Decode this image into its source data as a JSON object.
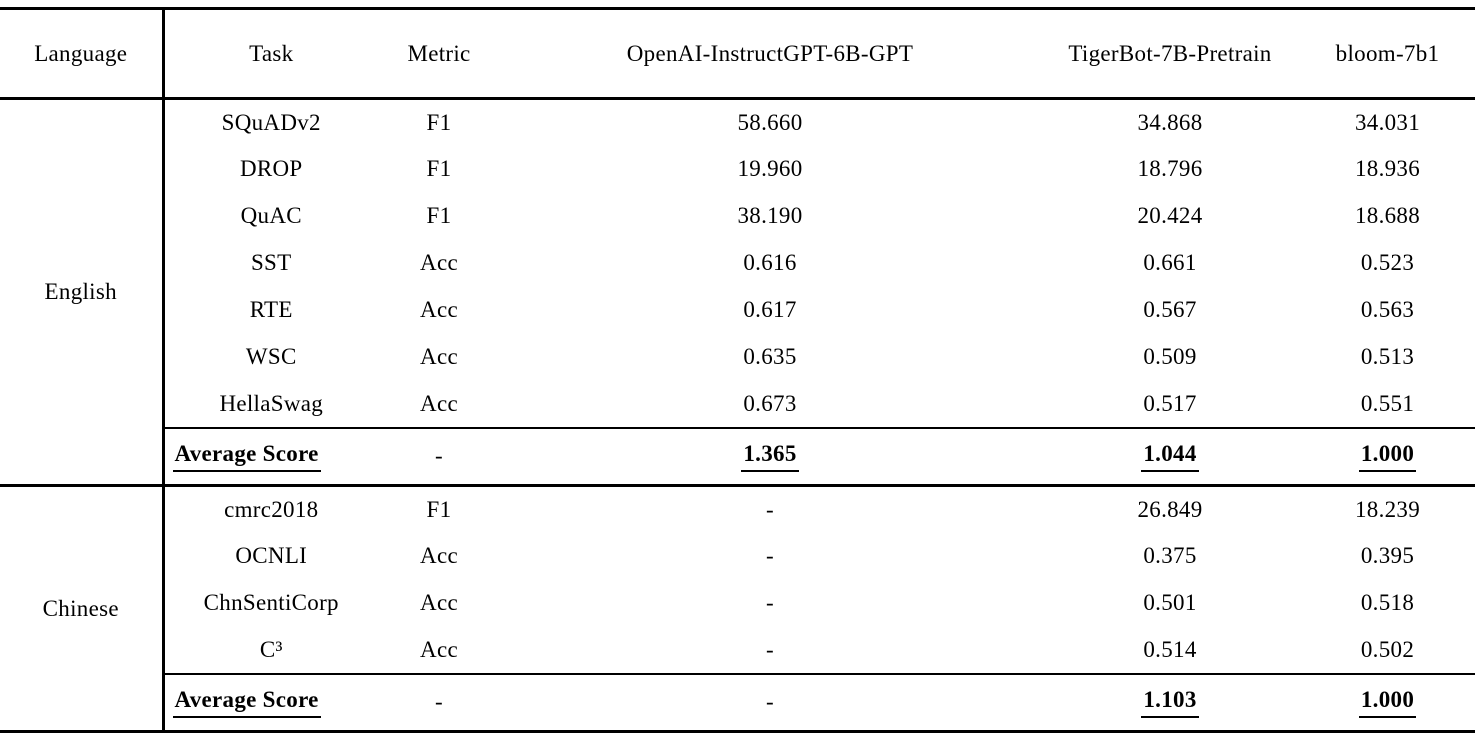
{
  "table": {
    "headers": {
      "language": "Language",
      "task": "Task",
      "metric": "Metric",
      "openai": "OpenAI-InstructGPT-6B-GPT",
      "tigerbot": "TigerBot-7B-Pretrain",
      "bloom": "bloom-7b1"
    },
    "sections": [
      {
        "language": "English",
        "rows": [
          {
            "task": "SQuADv2",
            "metric": "F1",
            "openai": "58.660",
            "tigerbot": "34.868",
            "bloom": "34.031"
          },
          {
            "task": "DROP",
            "metric": "F1",
            "openai": "19.960",
            "tigerbot": "18.796",
            "bloom": "18.936"
          },
          {
            "task": "QuAC",
            "metric": "F1",
            "openai": "38.190",
            "tigerbot": "20.424",
            "bloom": "18.688"
          },
          {
            "task": "SST",
            "metric": "Acc",
            "openai": "0.616",
            "tigerbot": "0.661",
            "bloom": "0.523"
          },
          {
            "task": "RTE",
            "metric": "Acc",
            "openai": "0.617",
            "tigerbot": "0.567",
            "bloom": "0.563"
          },
          {
            "task": "WSC",
            "metric": "Acc",
            "openai": "0.635",
            "tigerbot": "0.509",
            "bloom": "0.513"
          },
          {
            "task": "HellaSwag",
            "metric": "Acc",
            "openai": "0.673",
            "tigerbot": "0.517",
            "bloom": "0.551"
          }
        ],
        "average": {
          "label": "Average Score",
          "metric": "-",
          "openai": "1.365",
          "tigerbot": "1.044",
          "bloom": "1.000"
        }
      },
      {
        "language": "Chinese",
        "rows": [
          {
            "task": "cmrc2018",
            "metric": "F1",
            "openai": "-",
            "tigerbot": "26.849",
            "bloom": "18.239"
          },
          {
            "task": "OCNLI",
            "metric": "Acc",
            "openai": "-",
            "tigerbot": "0.375",
            "bloom": "0.395"
          },
          {
            "task": "ChnSentiCorp",
            "metric": "Acc",
            "openai": "-",
            "tigerbot": "0.501",
            "bloom": "0.518"
          },
          {
            "task": "C³",
            "metric": "Acc",
            "openai": "-",
            "tigerbot": "0.514",
            "bloom": "0.502"
          }
        ],
        "average": {
          "label": "Average Score",
          "metric": "-",
          "openai": "-",
          "tigerbot": "1.103",
          "bloom": "1.000"
        }
      }
    ]
  }
}
